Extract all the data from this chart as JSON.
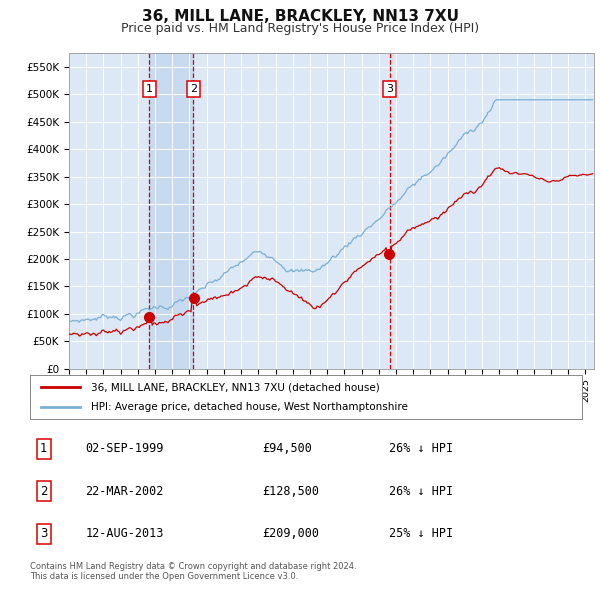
{
  "title": "36, MILL LANE, BRACKLEY, NN13 7XU",
  "subtitle": "Price paid vs. HM Land Registry's House Price Index (HPI)",
  "title_fontsize": 11,
  "subtitle_fontsize": 9,
  "ylim": [
    0,
    575000
  ],
  "xlim_start": 1995.0,
  "xlim_end": 2025.5,
  "background_color": "#ffffff",
  "plot_bg_color": "#dce8f5",
  "grid_color": "#ffffff",
  "red_line_color": "#cc0000",
  "blue_line_color": "#7bafd4",
  "highlight_bg": "#c8daf0",
  "dashed_line_color": "#dd0000",
  "legend_label_red": "36, MILL LANE, BRACKLEY, NN13 7XU (detached house)",
  "legend_label_blue": "HPI: Average price, detached house, West Northamptonshire",
  "purchases": [
    {
      "label": "1",
      "year": 1999.67,
      "price": 94500
    },
    {
      "label": "2",
      "year": 2002.22,
      "price": 128500
    },
    {
      "label": "3",
      "year": 2013.62,
      "price": 209000
    }
  ],
  "purchase_dates": [
    "02-SEP-1999",
    "22-MAR-2002",
    "12-AUG-2013"
  ],
  "purchase_prices": [
    "£94,500",
    "£128,500",
    "£209,000"
  ],
  "purchase_hpi": [
    "26% ↓ HPI",
    "26% ↓ HPI",
    "25% ↓ HPI"
  ],
  "footer": "Contains HM Land Registry data © Crown copyright and database right 2024.\nThis data is licensed under the Open Government Licence v3.0.",
  "ytick_labels": [
    "£0",
    "£50K",
    "£100K",
    "£150K",
    "£200K",
    "£250K",
    "£300K",
    "£350K",
    "£400K",
    "£450K",
    "£500K",
    "£550K"
  ],
  "ytick_values": [
    0,
    50000,
    100000,
    150000,
    200000,
    250000,
    300000,
    350000,
    400000,
    450000,
    500000,
    550000
  ]
}
